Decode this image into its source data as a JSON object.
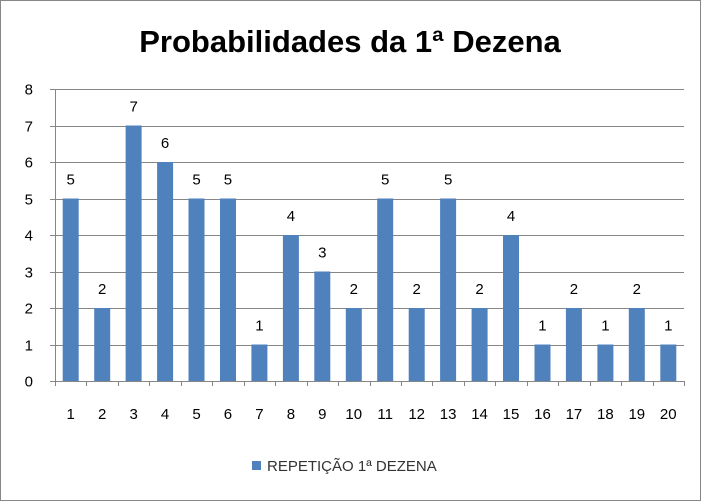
{
  "chart_data": {
    "type": "bar",
    "title": "Probabilidades da 1ª Dezena",
    "xlabel": "",
    "ylabel": "",
    "categories": [
      "1",
      "2",
      "3",
      "4",
      "5",
      "6",
      "7",
      "8",
      "9",
      "10",
      "11",
      "12",
      "13",
      "14",
      "15",
      "16",
      "17",
      "18",
      "19",
      "20"
    ],
    "series": [
      {
        "name": "REPETIÇÃO 1ª DEZENA",
        "values": [
          5,
          2,
          7,
          6,
          5,
          5,
          1,
          4,
          3,
          2,
          5,
          2,
          5,
          2,
          4,
          1,
          2,
          1,
          2,
          1
        ],
        "color": "#4F81BD"
      }
    ],
    "ylim": [
      0,
      8
    ],
    "yticks": [
      "0",
      "1",
      "2",
      "3",
      "4",
      "5",
      "6",
      "7",
      "8"
    ],
    "grid": true,
    "data_labels": true,
    "legend_position": "bottom"
  }
}
